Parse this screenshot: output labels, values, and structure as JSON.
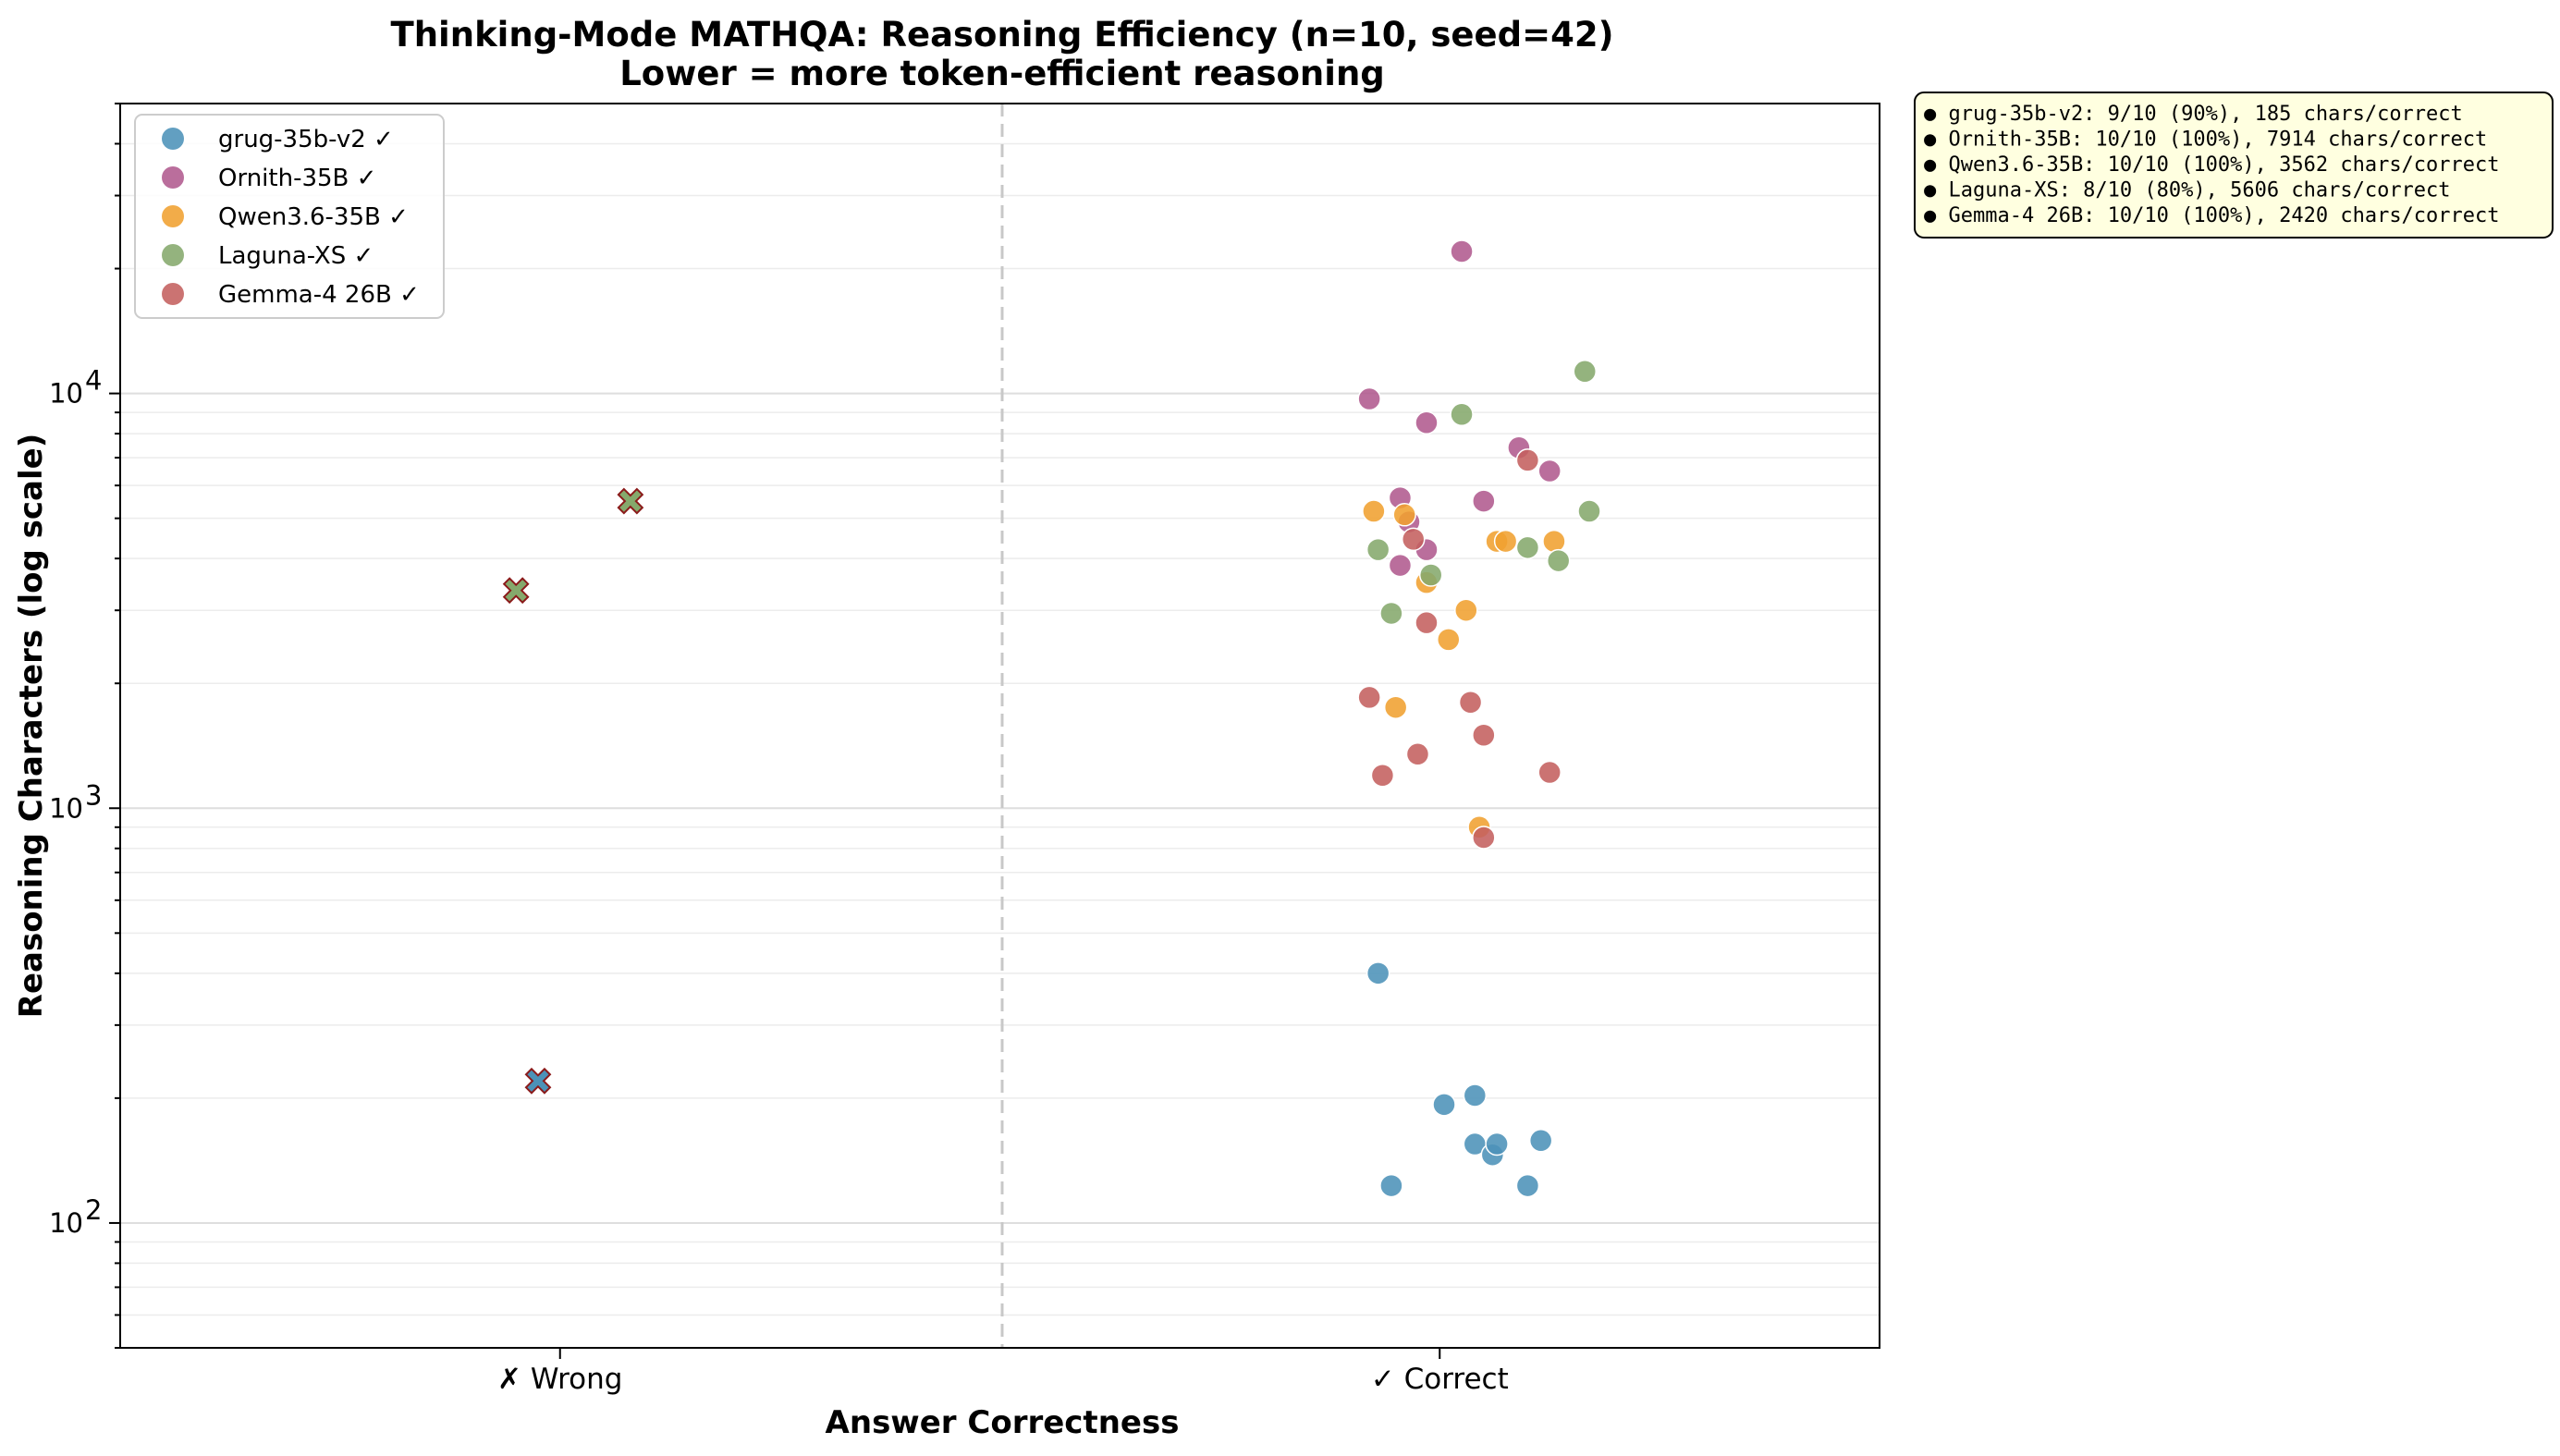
{
  "chart_data": {
    "type": "scatter",
    "title": "Thinking-Mode MATHQA: Reasoning Efficiency (n=10, seed=42)",
    "subtitle": "Lower = more token-efficient reasoning",
    "xlabel": "Answer Correctness",
    "ylabel": "Reasoning Characters (log scale)",
    "categories": [
      "✗ Wrong",
      "✓ Correct"
    ],
    "y_scale": "log",
    "ylim": [
      50,
      50000
    ],
    "y_ticks": [
      {
        "value": 100,
        "base": "10",
        "exp": "2"
      },
      {
        "value": 1000,
        "base": "10",
        "exp": "3"
      },
      {
        "value": 10000,
        "base": "10",
        "exp": "4"
      }
    ],
    "grid": "y-major-and-minor",
    "legend_position": "top-left",
    "series": [
      {
        "name": "grug-35b-v2 ✓",
        "color": "#4c92b8",
        "wrong": [
          {
            "x": 0.95,
            "y": 220
          }
        ],
        "correct": [
          {
            "x": 2.86,
            "y": 400
          },
          {
            "x": 2.89,
            "y": 123
          },
          {
            "x": 3.01,
            "y": 193
          },
          {
            "x": 3.08,
            "y": 203
          },
          {
            "x": 3.08,
            "y": 155
          },
          {
            "x": 3.12,
            "y": 146
          },
          {
            "x": 3.13,
            "y": 155
          },
          {
            "x": 3.2,
            "y": 123
          },
          {
            "x": 3.23,
            "y": 158
          }
        ]
      },
      {
        "name": "Ornith-35B ✓",
        "color": "#b05a8e",
        "wrong": [],
        "correct": [
          {
            "x": 2.84,
            "y": 9700
          },
          {
            "x": 2.91,
            "y": 5600
          },
          {
            "x": 2.93,
            "y": 4900
          },
          {
            "x": 2.91,
            "y": 3850
          },
          {
            "x": 2.97,
            "y": 8500
          },
          {
            "x": 2.97,
            "y": 4200
          },
          {
            "x": 3.05,
            "y": 22000
          },
          {
            "x": 3.1,
            "y": 5500
          },
          {
            "x": 3.18,
            "y": 7400
          },
          {
            "x": 3.25,
            "y": 6500
          }
        ]
      },
      {
        "name": "Qwen3.6-35B ✓",
        "color": "#f0a030",
        "wrong": [],
        "correct": [
          {
            "x": 2.85,
            "y": 5200
          },
          {
            "x": 2.92,
            "y": 5100
          },
          {
            "x": 2.9,
            "y": 1750
          },
          {
            "x": 2.97,
            "y": 3500
          },
          {
            "x": 3.02,
            "y": 2550
          },
          {
            "x": 3.06,
            "y": 3000
          },
          {
            "x": 3.09,
            "y": 900
          },
          {
            "x": 3.13,
            "y": 4400
          },
          {
            "x": 3.15,
            "y": 4400
          },
          {
            "x": 3.26,
            "y": 4400
          }
        ]
      },
      {
        "name": "Laguna-XS ✓",
        "color": "#85a96c",
        "wrong": [
          {
            "x": 0.9,
            "y": 3350
          },
          {
            "x": 1.16,
            "y": 5500
          }
        ],
        "correct": [
          {
            "x": 2.86,
            "y": 4200
          },
          {
            "x": 2.89,
            "y": 2950
          },
          {
            "x": 2.98,
            "y": 3650
          },
          {
            "x": 3.05,
            "y": 8900
          },
          {
            "x": 3.2,
            "y": 4250
          },
          {
            "x": 3.27,
            "y": 3950
          },
          {
            "x": 3.33,
            "y": 11300
          },
          {
            "x": 3.34,
            "y": 5200
          }
        ]
      },
      {
        "name": "Gemma-4 26B ✓",
        "color": "#c4605f",
        "wrong": [],
        "correct": [
          {
            "x": 2.84,
            "y": 1850
          },
          {
            "x": 2.87,
            "y": 1200
          },
          {
            "x": 2.94,
            "y": 4450
          },
          {
            "x": 2.95,
            "y": 1350
          },
          {
            "x": 2.97,
            "y": 2800
          },
          {
            "x": 3.07,
            "y": 1800
          },
          {
            "x": 3.1,
            "y": 1500
          },
          {
            "x": 3.1,
            "y": 850
          },
          {
            "x": 3.2,
            "y": 6900
          },
          {
            "x": 3.25,
            "y": 1220
          }
        ]
      }
    ],
    "stats_box": [
      "● grug-35b-v2: 9/10 (90%), 185 chars/correct",
      "● Ornith-35B: 10/10 (100%), 7914 chars/correct",
      "● Qwen3.6-35B: 10/10 (100%), 3562 chars/correct",
      "● Laguna-XS: 8/10 (80%), 5606 chars/correct",
      "● Gemma-4 26B: 10/10 (100%), 2420 chars/correct"
    ]
  }
}
